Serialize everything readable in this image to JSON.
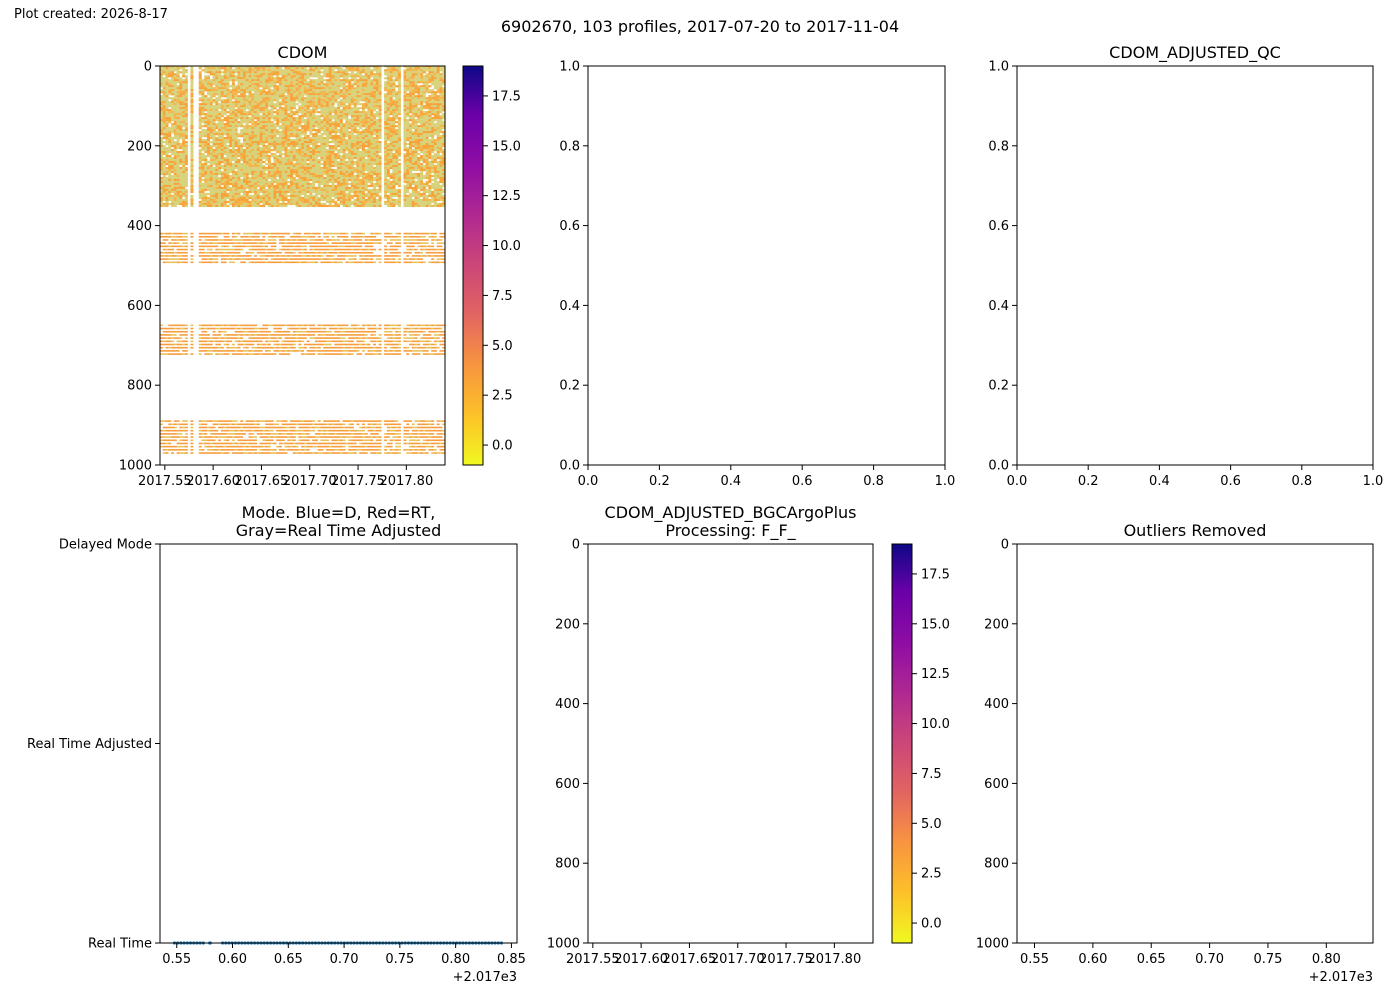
{
  "header": {
    "created": "Plot created: 2026-8-17",
    "suptitle": "6902670, 103 profiles, 2017-07-20 to 2017-11-04"
  },
  "chart_data": [
    {
      "id": "cdom",
      "type": "heatmap",
      "title": "CDOM",
      "xlim": [
        2017.545,
        2017.84
      ],
      "ylim": [
        1000,
        0
      ],
      "x_ticks": [
        "2017.55",
        "2017.60",
        "2017.65",
        "2017.70",
        "2017.75",
        "2017.80"
      ],
      "x_tick_values": [
        2017.55,
        2017.6,
        2017.65,
        2017.7,
        2017.75,
        2017.8
      ],
      "y_ticks": [
        "0",
        "200",
        "400",
        "600",
        "800",
        "1000"
      ],
      "y_tick_values": [
        0,
        200,
        400,
        600,
        800,
        1000
      ],
      "colormap": "plasma_r",
      "colorbar": {
        "range": [
          -1,
          19
        ],
        "ticks": [
          "0.0",
          "2.5",
          "5.0",
          "7.5",
          "10.0",
          "12.5",
          "15.0",
          "17.5"
        ],
        "tick_values": [
          0,
          2.5,
          5,
          7.5,
          10,
          12.5,
          15,
          17.5
        ]
      },
      "depth_bands": [
        {
          "range": [
            0,
            350
          ],
          "value": 1.5
        },
        {
          "range": [
            420,
            495
          ],
          "value": 3.0
        },
        {
          "range": [
            650,
            725
          ],
          "value": 3.0
        },
        {
          "range": [
            890,
            975
          ],
          "value": 3.0
        }
      ],
      "data_gaps_x": [
        2017.575,
        2017.582,
        2017.775,
        2017.795
      ]
    },
    {
      "id": "cdom-adjusted",
      "type": "empty",
      "title": "",
      "xlim": [
        0,
        1
      ],
      "ylim": [
        0,
        1
      ],
      "x_ticks": [
        "0.0",
        "0.2",
        "0.4",
        "0.6",
        "0.8",
        "1.0"
      ],
      "x_tick_values": [
        0,
        0.2,
        0.4,
        0.6,
        0.8,
        1.0
      ],
      "y_ticks": [
        "0.0",
        "0.2",
        "0.4",
        "0.6",
        "0.8",
        "1.0"
      ],
      "y_tick_values": [
        0,
        0.2,
        0.4,
        0.6,
        0.8,
        1.0
      ]
    },
    {
      "id": "cdom-adjusted-qc",
      "type": "empty",
      "title": "CDOM_ADJUSTED_QC",
      "xlim": [
        0,
        1
      ],
      "ylim": [
        0,
        1
      ],
      "x_ticks": [
        "0.0",
        "0.2",
        "0.4",
        "0.6",
        "0.8",
        "1.0"
      ],
      "x_tick_values": [
        0,
        0.2,
        0.4,
        0.6,
        0.8,
        1.0
      ],
      "y_ticks": [
        "0.0",
        "0.2",
        "0.4",
        "0.6",
        "0.8",
        "1.0"
      ],
      "y_tick_values": [
        0,
        0.2,
        0.4,
        0.6,
        0.8,
        1.0
      ]
    },
    {
      "id": "mode",
      "type": "scatter",
      "title_lines": [
        "Mode. Blue=D, Red=RT,",
        "Gray=Real Time Adjusted"
      ],
      "xlim": [
        0.535,
        0.855
      ],
      "ylim": [
        0,
        2
      ],
      "x_ticks": [
        "0.55",
        "0.60",
        "0.65",
        "0.70",
        "0.75",
        "0.80",
        "0.85"
      ],
      "x_tick_values": [
        0.55,
        0.6,
        0.65,
        0.7,
        0.75,
        0.8,
        0.85
      ],
      "x_offset": "+2.017e3",
      "y_ticks": [
        "Real Time",
        "Real Time Adjusted",
        "Delayed Mode"
      ],
      "y_tick_values": [
        0,
        1,
        2
      ],
      "point_color": "#1f77b4",
      "x_range": [
        0.548,
        0.841
      ],
      "y_value": 0,
      "n_points": 103,
      "gaps": [
        [
          0.574,
          0.579
        ],
        [
          0.581,
          0.589
        ]
      ]
    },
    {
      "id": "cdom-adjusted-bgc",
      "type": "heatmap",
      "title_lines": [
        "CDOM_ADJUSTED_BGCArgoPlus",
        "Processing: F_F_"
      ],
      "xlim": [
        2017.545,
        2017.84
      ],
      "ylim": [
        1000,
        0
      ],
      "x_ticks": [
        "2017.55",
        "2017.60",
        "2017.65",
        "2017.70",
        "2017.75",
        "2017.80"
      ],
      "x_tick_values": [
        2017.55,
        2017.6,
        2017.65,
        2017.7,
        2017.75,
        2017.8
      ],
      "y_ticks": [
        "0",
        "200",
        "400",
        "600",
        "800",
        "1000"
      ],
      "y_tick_values": [
        0,
        200,
        400,
        600,
        800,
        1000
      ],
      "colormap": "plasma_r",
      "colorbar": {
        "range": [
          -1,
          19
        ],
        "ticks": [
          "0.0",
          "2.5",
          "5.0",
          "7.5",
          "10.0",
          "12.5",
          "15.0",
          "17.5"
        ],
        "tick_values": [
          0,
          2.5,
          5,
          7.5,
          10,
          12.5,
          15,
          17.5
        ]
      }
    },
    {
      "id": "outliers-removed",
      "type": "empty",
      "title": "Outliers Removed",
      "xlim": [
        0.535,
        0.84
      ],
      "ylim": [
        1000,
        0
      ],
      "x_ticks": [
        "0.55",
        "0.60",
        "0.65",
        "0.70",
        "0.75",
        "0.80"
      ],
      "x_tick_values": [
        0.55,
        0.6,
        0.65,
        0.7,
        0.75,
        0.8
      ],
      "x_offset": "+2.017e3",
      "y_ticks": [
        "0",
        "200",
        "400",
        "600",
        "800",
        "1000"
      ],
      "y_tick_values": [
        0,
        200,
        400,
        600,
        800,
        1000
      ]
    }
  ]
}
